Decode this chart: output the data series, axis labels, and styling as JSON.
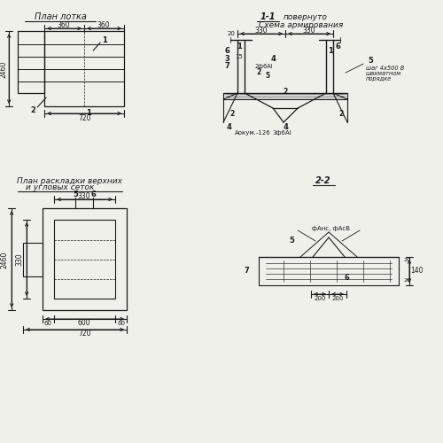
{
  "bg_color": "#f0f0eb",
  "line_color": "#1a1a1a",
  "title1": "План лотка",
  "title2": "1-1",
  "title2b": "повернуто",
  "title3": "Схема армирования",
  "title4a": "План раскладки верхних",
  "title4b": "и угловых сеток",
  "title5": "2-2",
  "d360": "360",
  "d720": "720",
  "d2460": "2460",
  "d330": "330",
  "d600": "600",
  "d60": "60",
  "d200": "200",
  "d140": "140",
  "d20": "20",
  "d15": "15",
  "l1": "1",
  "l2": "2",
  "l3": "3",
  "l4": "4",
  "l5": "5",
  "l6": "6",
  "l7": "7",
  "text_dokum": "Аокум.-126",
  "text_3phi": "3ф6АI",
  "text_2phi": "2ф6АI",
  "text_shag1": "шаг 4х500 В",
  "text_shag2": "шахматном",
  "text_shag3": "порядке",
  "text_frac": "фАнс, фАсВ"
}
